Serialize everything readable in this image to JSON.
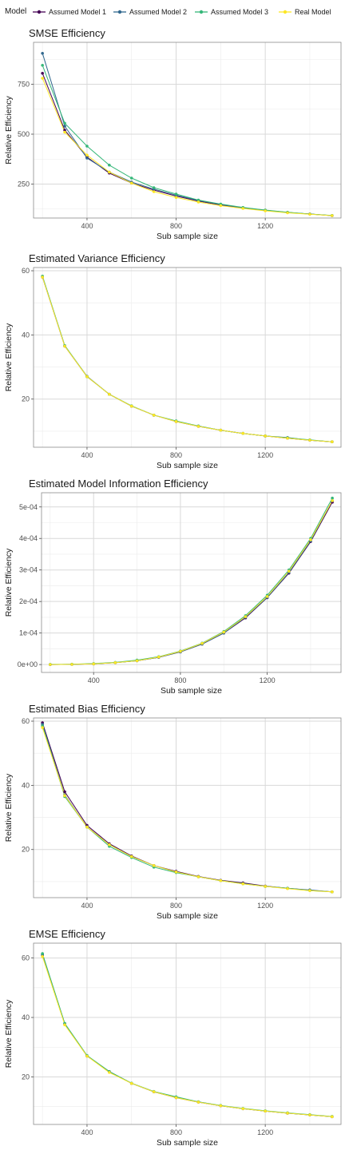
{
  "legend": {
    "title": "Model",
    "items": [
      {
        "label": "Assumed Model 1",
        "color": "#440154"
      },
      {
        "label": "Assumed Model 2",
        "color": "#31688e"
      },
      {
        "label": "Assumed Model 3",
        "color": "#35b779"
      },
      {
        "label": "Real Model",
        "color": "#fde725"
      }
    ]
  },
  "chart_data": [
    {
      "type": "line",
      "title": "SMSE Efficiency",
      "xlabel": "Sub sample size",
      "ylabel": "Relative Efficiency",
      "xlim": [
        160,
        1540
      ],
      "ylim": [
        80,
        960
      ],
      "xticks": [
        400,
        800,
        1200
      ],
      "xtick_labels": [
        "400",
        "800",
        "1200"
      ],
      "yticks": [
        250,
        500,
        750
      ],
      "ytick_labels": [
        "250",
        "500",
        "750"
      ],
      "grid": true,
      "legend": "top",
      "series": [
        {
          "name": "Assumed Model 1",
          "color": "#440154",
          "x": [
            200,
            300,
            400,
            500,
            600,
            700,
            800,
            900,
            1000,
            1100,
            1200,
            1300,
            1400,
            1500
          ],
          "y": [
            805,
            520,
            385,
            305,
            255,
            220,
            190,
            165,
            145,
            130,
            118,
            108,
            100,
            92
          ]
        },
        {
          "name": "Assumed Model 2",
          "color": "#31688e",
          "x": [
            200,
            300,
            400,
            500,
            600,
            700,
            800,
            900,
            1000,
            1100,
            1200,
            1300,
            1400,
            1500
          ],
          "y": [
            905,
            540,
            380,
            310,
            260,
            225,
            195,
            168,
            148,
            132,
            119,
            108,
            100,
            92
          ]
        },
        {
          "name": "Assumed Model 3",
          "color": "#35b779",
          "x": [
            200,
            300,
            400,
            500,
            600,
            700,
            800,
            900,
            1000,
            1100,
            1200,
            1300,
            1400,
            1500
          ],
          "y": [
            845,
            555,
            440,
            345,
            280,
            232,
            200,
            170,
            150,
            133,
            120,
            109,
            100,
            93
          ]
        },
        {
          "name": "Real Model",
          "color": "#fde725",
          "x": [
            200,
            300,
            400,
            500,
            600,
            700,
            800,
            900,
            1000,
            1100,
            1200,
            1300,
            1400,
            1500
          ],
          "y": [
            780,
            510,
            395,
            310,
            255,
            212,
            183,
            160,
            142,
            128,
            116,
            106,
            99,
            92
          ]
        }
      ]
    },
    {
      "type": "line",
      "title": "Estimated Variance Efficiency",
      "xlabel": "Sub sample size",
      "ylabel": "Relative Efficiency",
      "xlim": [
        160,
        1540
      ],
      "ylim": [
        5,
        61
      ],
      "xticks": [
        400,
        800,
        1200
      ],
      "xtick_labels": [
        "400",
        "800",
        "1200"
      ],
      "yticks": [
        20,
        40,
        60
      ],
      "ytick_labels": [
        "20",
        "40",
        "60"
      ],
      "grid": true,
      "legend": "top",
      "series": [
        {
          "name": "Assumed Model 1",
          "color": "#440154",
          "x": [
            200,
            300,
            400,
            500,
            600,
            700,
            800,
            900,
            1000,
            1100,
            1200,
            1300,
            1400,
            1500
          ],
          "y": [
            58,
            36.5,
            27,
            21.5,
            17.8,
            15,
            13,
            11.5,
            10.3,
            9.3,
            8.5,
            7.8,
            7.2,
            6.7
          ]
        },
        {
          "name": "Assumed Model 2",
          "color": "#31688e",
          "x": [
            200,
            300,
            400,
            500,
            600,
            700,
            800,
            900,
            1000,
            1100,
            1200,
            1300,
            1400,
            1500
          ],
          "y": [
            58.2,
            36.6,
            27.1,
            21.5,
            17.8,
            15,
            13.1,
            11.6,
            10.3,
            9.3,
            8.5,
            8,
            7.2,
            6.7
          ]
        },
        {
          "name": "Assumed Model 3",
          "color": "#35b779",
          "x": [
            200,
            300,
            400,
            500,
            600,
            700,
            800,
            900,
            1000,
            1100,
            1200,
            1300,
            1400,
            1500
          ],
          "y": [
            58.3,
            36.7,
            27,
            21.5,
            17.9,
            15,
            13.2,
            11.6,
            10.3,
            9.3,
            8.5,
            7.9,
            7.3,
            6.7
          ]
        },
        {
          "name": "Real Model",
          "color": "#fde725",
          "x": [
            200,
            300,
            400,
            500,
            600,
            700,
            800,
            900,
            1000,
            1100,
            1200,
            1300,
            1400,
            1500
          ],
          "y": [
            58,
            36.5,
            27,
            21.5,
            17.8,
            15,
            13,
            11.5,
            10.3,
            9.3,
            8.5,
            7.8,
            7.2,
            6.7
          ]
        }
      ]
    },
    {
      "type": "line",
      "title": "Estimated Model Information Efficiency",
      "xlabel": "Sub sample size",
      "ylabel": "Relative Efficiency",
      "xlim": [
        160,
        1540
      ],
      "ylim": [
        -2.5e-05,
        0.000545
      ],
      "xticks": [
        400,
        800,
        1200
      ],
      "xtick_labels": [
        "400",
        "800",
        "1200"
      ],
      "yticks": [
        0,
        0.0001,
        0.0002,
        0.0003,
        0.0004,
        0.0005
      ],
      "ytick_labels": [
        "0e+00",
        "1e-04",
        "2e-04",
        "3e-04",
        "4e-04",
        "5e-04"
      ],
      "grid": true,
      "legend": "top",
      "series": [
        {
          "name": "Assumed Model 1",
          "color": "#440154",
          "x": [
            200,
            300,
            400,
            500,
            600,
            700,
            800,
            900,
            1000,
            1100,
            1200,
            1300,
            1400,
            1500
          ],
          "y": [
            0,
            5e-07,
            2e-06,
            6e-06,
            1.2e-05,
            2.3e-05,
            4e-05,
            6.5e-05,
            0.0001,
            0.000148,
            0.000212,
            0.00029,
            0.00039,
            0.000515
          ]
        },
        {
          "name": "Assumed Model 2",
          "color": "#31688e",
          "x": [
            200,
            300,
            400,
            500,
            600,
            700,
            800,
            900,
            1000,
            1100,
            1200,
            1300,
            1400,
            1500
          ],
          "y": [
            0,
            5e-07,
            2e-06,
            6e-06,
            1.2e-05,
            2.3e-05,
            4e-05,
            6.5e-05,
            0.0001,
            0.00015,
            0.000213,
            0.000292,
            0.000392,
            0.00052
          ]
        },
        {
          "name": "Assumed Model 3",
          "color": "#35b779",
          "x": [
            200,
            300,
            400,
            500,
            600,
            700,
            800,
            900,
            1000,
            1100,
            1200,
            1300,
            1400,
            1500
          ],
          "y": [
            5e-07,
            1e-06,
            3e-06,
            7e-06,
            1.4e-05,
            2.5e-05,
            4.3e-05,
            6.8e-05,
            0.000105,
            0.000155,
            0.00022,
            0.0003,
            0.0004,
            0.000528
          ]
        },
        {
          "name": "Real Model",
          "color": "#fde725",
          "x": [
            200,
            300,
            400,
            500,
            600,
            700,
            800,
            900,
            1000,
            1100,
            1200,
            1300,
            1400,
            1500
          ],
          "y": [
            0,
            5e-07,
            2e-06,
            6e-06,
            1.2e-05,
            2.4e-05,
            4.2e-05,
            6.7e-05,
            0.000103,
            0.000152,
            0.000216,
            0.000296,
            0.000396,
            0.00052
          ]
        }
      ]
    },
    {
      "type": "line",
      "title": "Estimated Bias Efficiency",
      "xlabel": "Sub sample size",
      "ylabel": "Relative Efficiency",
      "xlim": [
        160,
        1540
      ],
      "ylim": [
        5,
        61
      ],
      "xticks": [
        400,
        800,
        1200
      ],
      "xtick_labels": [
        "400",
        "800",
        "1200"
      ],
      "yticks": [
        20,
        40,
        60
      ],
      "ytick_labels": [
        "20",
        "40",
        "60"
      ],
      "grid": true,
      "legend": "top",
      "series": [
        {
          "name": "Assumed Model 1",
          "color": "#440154",
          "x": [
            200,
            300,
            400,
            500,
            600,
            700,
            800,
            900,
            1000,
            1100,
            1200,
            1300,
            1400,
            1500
          ],
          "y": [
            59.5,
            38,
            27.5,
            21.8,
            18,
            15,
            13.2,
            11.6,
            10.4,
            9.6,
            8.6,
            7.9,
            7.3,
            6.8
          ]
        },
        {
          "name": "Assumed Model 2",
          "color": "#31688e",
          "x": [
            200,
            300,
            400,
            500,
            600,
            700,
            800,
            900,
            1000,
            1100,
            1200,
            1300,
            1400,
            1500
          ],
          "y": [
            59,
            37,
            27,
            21.5,
            17.8,
            15,
            13,
            11.5,
            10.3,
            9.4,
            8.5,
            7.9,
            7.4,
            6.8
          ]
        },
        {
          "name": "Assumed Model 3",
          "color": "#35b779",
          "x": [
            200,
            300,
            400,
            500,
            600,
            700,
            800,
            900,
            1000,
            1100,
            1200,
            1300,
            1400,
            1500
          ],
          "y": [
            58.5,
            36.5,
            27,
            21,
            17.5,
            14.5,
            12.8,
            11.5,
            10.3,
            9.3,
            8.5,
            7.9,
            7.2,
            6.8
          ]
        },
        {
          "name": "Real Model",
          "color": "#fde725",
          "x": [
            200,
            300,
            400,
            500,
            600,
            700,
            800,
            900,
            1000,
            1100,
            1200,
            1300,
            1400,
            1500
          ],
          "y": [
            58,
            36.8,
            27,
            21.5,
            17.8,
            15,
            13,
            11.5,
            10.3,
            9.3,
            8.5,
            7.8,
            7.2,
            6.8
          ]
        }
      ]
    },
    {
      "type": "line",
      "title": "EMSE Efficiency",
      "xlabel": "Sub sample size",
      "ylabel": "Relative Efficiency",
      "xlim": [
        160,
        1540
      ],
      "ylim": [
        4,
        65
      ],
      "xticks": [
        400,
        800,
        1200
      ],
      "xtick_labels": [
        "400",
        "800",
        "1200"
      ],
      "yticks": [
        20,
        40,
        60
      ],
      "ytick_labels": [
        "20",
        "40",
        "60"
      ],
      "grid": true,
      "legend": "top",
      "series": [
        {
          "name": "Assumed Model 1",
          "color": "#440154",
          "x": [
            200,
            300,
            400,
            500,
            600,
            700,
            800,
            900,
            1000,
            1100,
            1200,
            1300,
            1400,
            1500
          ],
          "y": [
            61,
            37.8,
            27,
            21.8,
            17.8,
            15,
            13,
            11.5,
            10.3,
            9.3,
            8.5,
            7.8,
            7.2,
            6.6
          ]
        },
        {
          "name": "Assumed Model 2",
          "color": "#31688e",
          "x": [
            200,
            300,
            400,
            500,
            600,
            700,
            800,
            900,
            1000,
            1100,
            1200,
            1300,
            1400,
            1500
          ],
          "y": [
            61.3,
            37.9,
            27.1,
            21.8,
            17.8,
            15,
            13.1,
            11.6,
            10.3,
            9.3,
            8.5,
            7.8,
            7.2,
            6.6
          ]
        },
        {
          "name": "Assumed Model 3",
          "color": "#35b779",
          "x": [
            200,
            300,
            400,
            500,
            600,
            700,
            800,
            900,
            1000,
            1100,
            1200,
            1300,
            1400,
            1500
          ],
          "y": [
            61.5,
            38,
            27.2,
            21.8,
            17.9,
            15.1,
            13.3,
            11.6,
            10.4,
            9.4,
            8.6,
            7.9,
            7.3,
            6.7
          ]
        },
        {
          "name": "Real Model",
          "color": "#fde725",
          "x": [
            200,
            300,
            400,
            500,
            600,
            700,
            800,
            900,
            1000,
            1100,
            1200,
            1300,
            1400,
            1500
          ],
          "y": [
            60.5,
            37.5,
            27,
            21.5,
            17.8,
            15,
            13,
            11.5,
            10.3,
            9.3,
            8.5,
            7.8,
            7.2,
            6.6
          ]
        }
      ]
    }
  ]
}
